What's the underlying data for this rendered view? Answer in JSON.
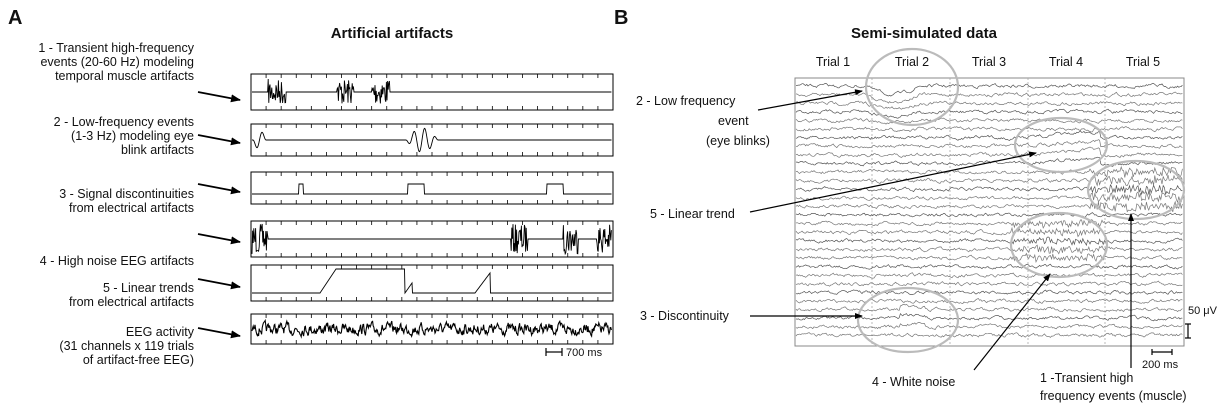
{
  "panel_a": {
    "letter": "A",
    "title": "Artificial artifacts",
    "rows": [
      {
        "lines": [
          "1 - Transient high-frequency",
          "events (20-60 Hz) modeling",
          "temporal muscle artifacts"
        ]
      },
      {
        "lines": [
          "2 - Low-frequency events",
          "(1-3 Hz)  modeling eye",
          "blink artifacts"
        ]
      },
      {
        "lines": [
          "3 - Signal discontinuities",
          "from electrical artifacts"
        ]
      },
      {
        "lines": [
          "4 - High noise EEG artifacts"
        ]
      },
      {
        "lines": [
          "5 - Linear trends",
          "from electrical artifacts"
        ]
      },
      {
        "lines": [
          "EEG activity",
          "(31 channels x 119 trials",
          "of artifact-free EEG)"
        ]
      }
    ],
    "scale_label": "700 ms"
  },
  "panel_b": {
    "letter": "B",
    "title": "Semi-simulated data",
    "trials": [
      "Trial 1",
      "Trial 2",
      "Trial 3",
      "Trial 4",
      "Trial 5"
    ],
    "annotations": {
      "low_freq": [
        "2 - Low frequency",
        "event",
        "(eye blinks)"
      ],
      "linear_trend": [
        "5 - Linear trend"
      ],
      "discontinuity": [
        "3 - Discontinuity"
      ],
      "white_noise": [
        "4 - White noise"
      ],
      "muscle": [
        "1 -Transient high",
        "frequency events (muscle)"
      ]
    },
    "amplitude_scale": "50 μV",
    "time_scale": "200 ms"
  }
}
